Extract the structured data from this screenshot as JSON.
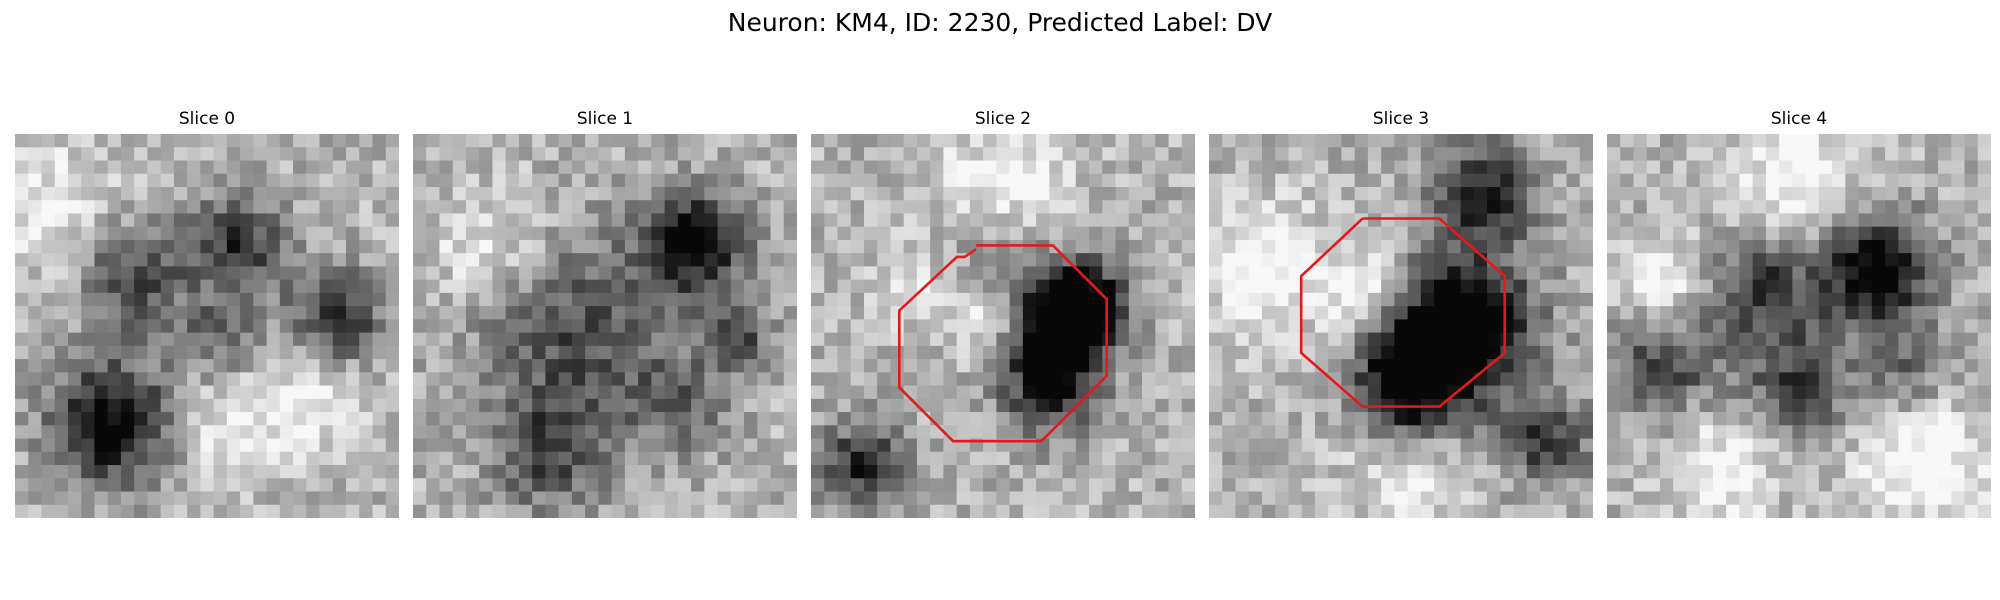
{
  "figure": {
    "title": "Neuron: KM4, ID: 2230, Predicted Label: DV",
    "outline_color": "#e31a1c",
    "panels": [
      {
        "title": "Slice 0",
        "seed": 11,
        "blobs": [
          [
            0.25,
            0.75,
            0.11,
            -0.75
          ],
          [
            0.3,
            0.36,
            0.1,
            -0.45
          ],
          [
            0.58,
            0.29,
            0.09,
            -0.5
          ],
          [
            0.84,
            0.47,
            0.08,
            -0.55
          ],
          [
            0.54,
            0.53,
            0.08,
            -0.3
          ],
          [
            0.56,
            0.76,
            0.1,
            0.25
          ],
          [
            0.12,
            0.2,
            0.12,
            0.25
          ],
          [
            0.78,
            0.72,
            0.09,
            0.2
          ]
        ],
        "outline": []
      },
      {
        "title": "Slice 1",
        "seed": 23,
        "blobs": [
          [
            0.73,
            0.28,
            0.09,
            -0.75
          ],
          [
            0.42,
            0.52,
            0.18,
            -0.4
          ],
          [
            0.35,
            0.83,
            0.1,
            -0.4
          ],
          [
            0.7,
            0.7,
            0.09,
            -0.3
          ],
          [
            0.2,
            0.3,
            0.11,
            0.25
          ],
          [
            0.85,
            0.52,
            0.06,
            -0.4
          ]
        ],
        "outline": []
      },
      {
        "title": "Slice 2",
        "seed": 37,
        "blobs": [
          [
            0.64,
            0.5,
            0.09,
            -0.9
          ],
          [
            0.72,
            0.43,
            0.07,
            -0.6
          ],
          [
            0.48,
            0.48,
            0.08,
            0.35
          ],
          [
            0.62,
            0.66,
            0.09,
            -0.55
          ],
          [
            0.5,
            0.33,
            0.1,
            -0.3
          ],
          [
            0.14,
            0.86,
            0.08,
            -0.55
          ],
          [
            0.25,
            0.4,
            0.07,
            0.2
          ],
          [
            0.5,
            0.15,
            0.12,
            0.3
          ]
        ],
        "outline": [
          [
            0.43,
            0.3
          ],
          [
            0.4,
            0.32
          ],
          [
            0.38,
            0.32
          ],
          [
            0.23,
            0.46
          ],
          [
            0.23,
            0.66
          ],
          [
            0.37,
            0.8
          ],
          [
            0.6,
            0.8
          ],
          [
            0.77,
            0.63
          ],
          [
            0.77,
            0.43
          ],
          [
            0.63,
            0.29
          ],
          [
            0.43,
            0.29
          ]
        ]
      },
      {
        "title": "Slice 3",
        "seed": 49,
        "blobs": [
          [
            0.65,
            0.5,
            0.13,
            -0.95
          ],
          [
            0.42,
            0.41,
            0.08,
            0.35
          ],
          [
            0.52,
            0.66,
            0.1,
            -0.7
          ],
          [
            0.72,
            0.15,
            0.09,
            -0.6
          ],
          [
            0.15,
            0.35,
            0.12,
            0.3
          ],
          [
            0.88,
            0.8,
            0.08,
            -0.5
          ],
          [
            0.5,
            0.88,
            0.12,
            0.2
          ]
        ],
        "outline": [
          [
            0.4,
            0.22
          ],
          [
            0.24,
            0.37
          ],
          [
            0.24,
            0.57
          ],
          [
            0.4,
            0.71
          ],
          [
            0.6,
            0.71
          ],
          [
            0.77,
            0.57
          ],
          [
            0.77,
            0.37
          ],
          [
            0.6,
            0.22
          ],
          [
            0.4,
            0.22
          ]
        ]
      },
      {
        "title": "Slice 4",
        "seed": 61,
        "blobs": [
          [
            0.7,
            0.35,
            0.1,
            -0.8
          ],
          [
            0.4,
            0.4,
            0.1,
            -0.5
          ],
          [
            0.15,
            0.6,
            0.09,
            -0.45
          ],
          [
            0.5,
            0.65,
            0.1,
            -0.45
          ],
          [
            0.78,
            0.62,
            0.08,
            -0.3
          ],
          [
            0.15,
            0.38,
            0.08,
            0.3
          ],
          [
            0.5,
            0.12,
            0.12,
            0.3
          ],
          [
            0.82,
            0.85,
            0.12,
            0.35
          ],
          [
            0.3,
            0.88,
            0.1,
            0.3
          ]
        ],
        "outline": []
      }
    ]
  }
}
